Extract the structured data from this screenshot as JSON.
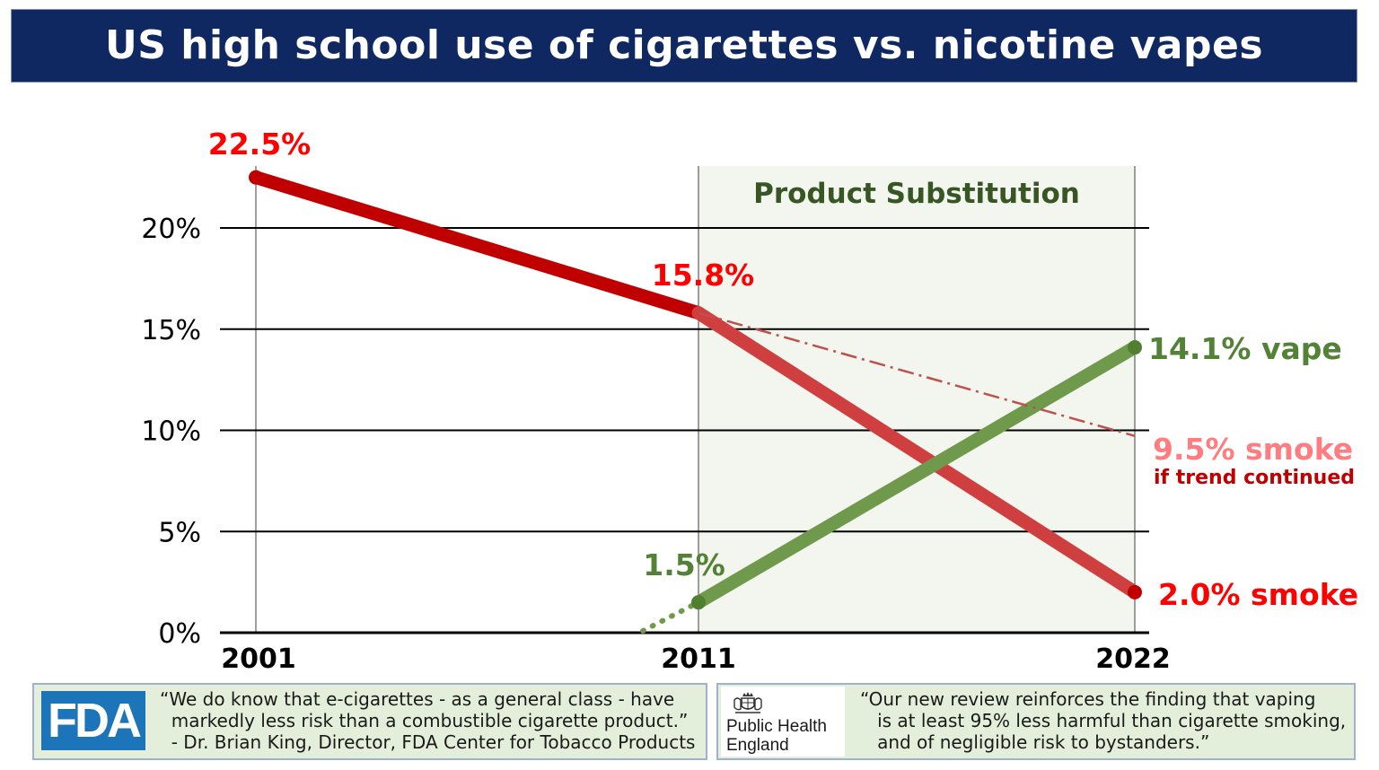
{
  "header": {
    "title": "US high school use of cigarettes vs. nicotine vapes"
  },
  "chart_data": {
    "type": "line",
    "title": "US high school use of cigarettes vs. nicotine vapes",
    "xlabel": "",
    "ylabel": "",
    "x_ticks": [
      "2001",
      "2011",
      "2022"
    ],
    "y_ticks": [
      "0%",
      "5%",
      "10%",
      "15%",
      "20%"
    ],
    "ylim": [
      0,
      22.5
    ],
    "grid": "horizontal",
    "region": {
      "label": "Product Substitution",
      "x_start": 2011,
      "x_end": 2022
    },
    "series": [
      {
        "key": "smoke",
        "x": [
          2001,
          2011,
          2022
        ],
        "values": [
          22.5,
          15.8,
          2.0
        ],
        "color": "#c00000"
      },
      {
        "key": "vape",
        "x": [
          2011,
          2022
        ],
        "values": [
          1.5,
          14.1
        ],
        "color": "#6f9a4c"
      },
      {
        "key": "trend",
        "x": [
          2011,
          2022
        ],
        "values": [
          15.8,
          9.5
        ],
        "color": "#c0504d"
      }
    ],
    "labels": {
      "smoke_2001": "22.5%",
      "smoke_2011": "15.8%",
      "vape_2011": "1.5%",
      "vape_2022": "14.1% vape",
      "trend_2022": "9.5% smoke",
      "trend_note": "if trend continued",
      "smoke_2022": "2.0% smoke"
    }
  },
  "quotes": {
    "fda": {
      "logo": "FDA",
      "text": "“We do know that e-cigarettes - as a general class - have\n  markedly less risk than a combustible cigarette product.”\n  - Dr. Brian King, Director, FDA Center for Tobacco Products"
    },
    "phe": {
      "logo_text": "Public Health\nEngland",
      "text": "“Our new review reinforces the finding that vaping\n   is at least 95% less harmful than cigarette smoking,\n   and of negligible risk to bystanders.”"
    }
  }
}
